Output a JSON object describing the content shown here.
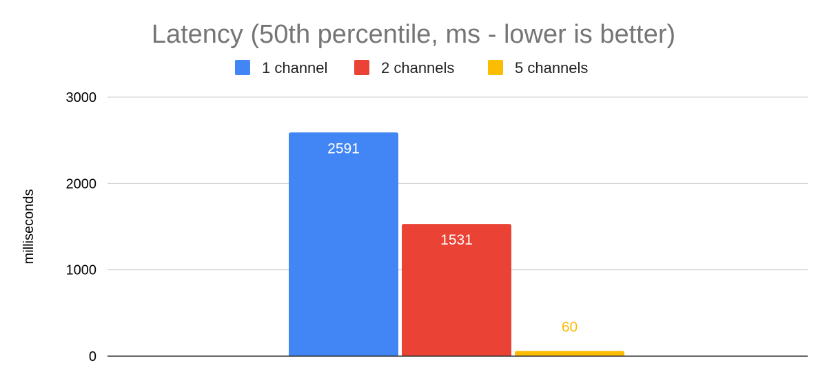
{
  "chart_data": {
    "type": "bar",
    "title": "Latency (50th percentile, ms - lower is better)",
    "xlabel": "",
    "ylabel": "milliseconds",
    "ylim": [
      0,
      3000
    ],
    "yticks": [
      0,
      1000,
      2000,
      3000
    ],
    "grid": true,
    "legend_position": "top",
    "categories": [
      ""
    ],
    "series": [
      {
        "name": "1 channel",
        "values": [
          2591
        ],
        "color": "#4285f4",
        "label_color": "#ffffff",
        "label_placement": "inside"
      },
      {
        "name": "2 channels",
        "values": [
          1531
        ],
        "color": "#ea4335",
        "label_color": "#ffffff",
        "label_placement": "inside"
      },
      {
        "name": "5 channels",
        "values": [
          60
        ],
        "color": "#fbbc04",
        "label_color": "#fbbc04",
        "label_placement": "outside"
      }
    ]
  }
}
